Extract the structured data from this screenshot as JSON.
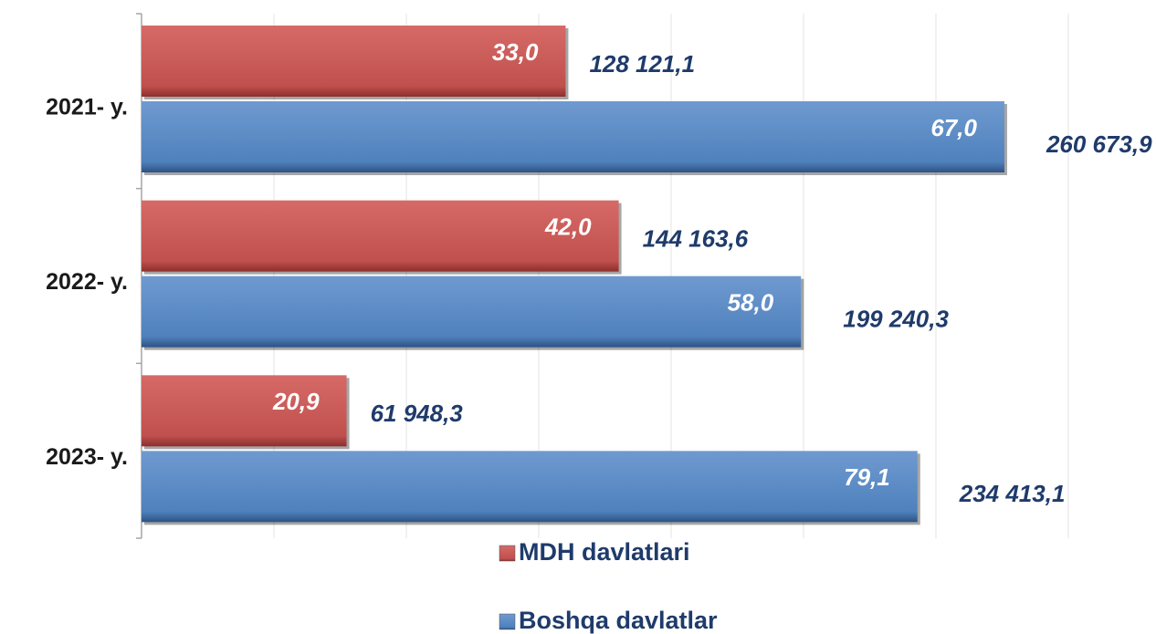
{
  "chart_data": {
    "type": "barh",
    "categories": [
      "2021- y.",
      "2022- y.",
      "2023- y."
    ],
    "series": [
      {
        "name": "MDH davlatlari",
        "color": "#c0504d",
        "values": [
          128121.1,
          144163.6,
          61948.3
        ],
        "value_labels": [
          "128 121,1",
          "144 163,6",
          "61 948,3"
        ],
        "shares": [
          33.0,
          42.0,
          20.9
        ],
        "share_labels": [
          "33,0",
          "42,0",
          "20,9"
        ]
      },
      {
        "name": "Boshqa davlatlar",
        "color": "#4f81bd",
        "values": [
          260673.9,
          199240.3,
          234413.1
        ],
        "value_labels": [
          "260 673,9",
          "199 240,3",
          "234 413,1"
        ],
        "shares": [
          67.0,
          58.0,
          79.1
        ],
        "share_labels": [
          "67,0",
          "58,0",
          "79,1"
        ]
      }
    ],
    "xlim": [
      0,
      280000
    ],
    "xticks": [
      0,
      40000,
      80000,
      120000,
      160000,
      200000,
      240000,
      280000
    ],
    "grid": true
  }
}
